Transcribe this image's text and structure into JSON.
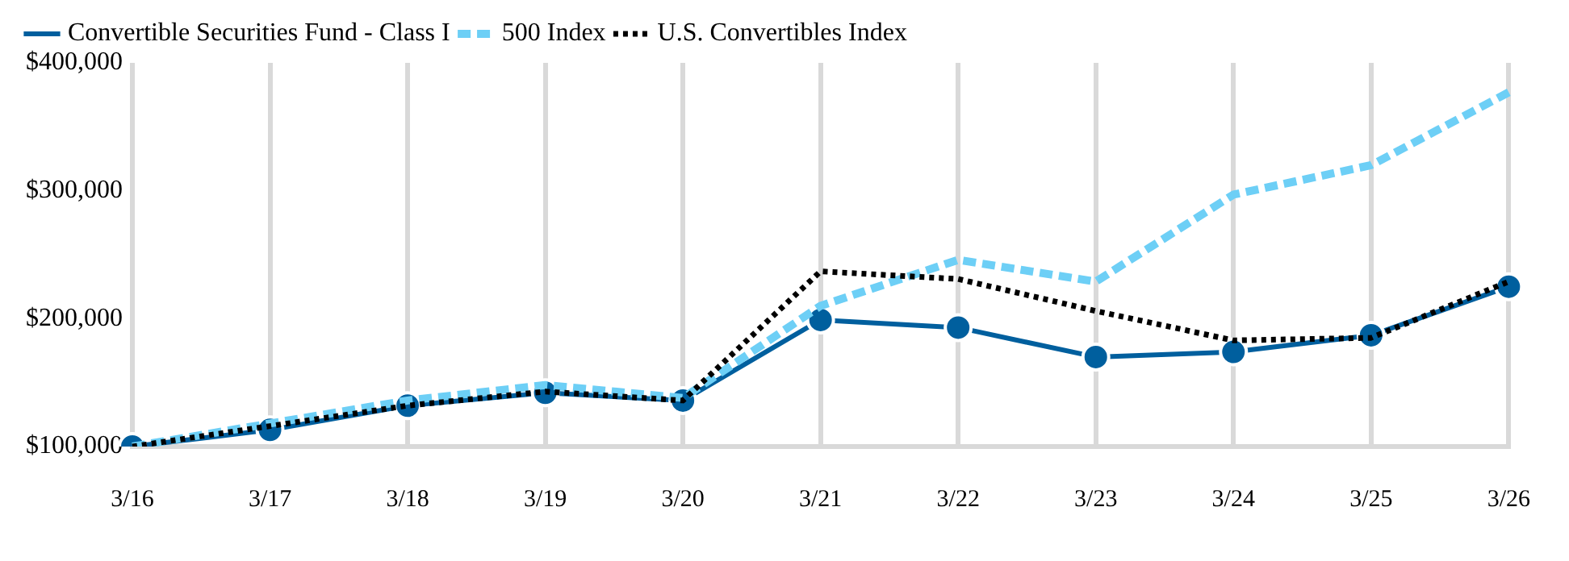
{
  "chart_data": {
    "type": "line",
    "categories": [
      "3/16",
      "3/17",
      "3/18",
      "3/19",
      "3/20",
      "3/21",
      "3/22",
      "3/23",
      "3/24",
      "3/25",
      "3/26"
    ],
    "series": [
      {
        "name": "Convertible Securities Fund - Class I",
        "color": "#005f9e",
        "marker": "circle",
        "line_style": "solid",
        "values": [
          100000,
          113000,
          132000,
          142000,
          136000,
          199000,
          193000,
          170000,
          174000,
          187000,
          225000
        ]
      },
      {
        "name": "500 Index",
        "color": "#6dcff6",
        "marker": "none",
        "line_style": "dashed",
        "values": [
          100000,
          118000,
          136000,
          148000,
          138000,
          210000,
          246000,
          229000,
          297000,
          320000,
          377000
        ]
      },
      {
        "name": "U.S. Convertibles Index",
        "color": "#000000",
        "marker": "none",
        "line_style": "dotted",
        "values": [
          100000,
          116000,
          132000,
          143000,
          136000,
          237000,
          231000,
          206000,
          183000,
          185000,
          229000
        ]
      }
    ],
    "ylim": [
      100000,
      400000
    ],
    "yticks": [
      {
        "value": 100000,
        "label": "$100,000"
      },
      {
        "value": 200000,
        "label": "$200,000"
      },
      {
        "value": 300000,
        "label": "$300,000"
      },
      {
        "value": 400000,
        "label": "$400,000"
      }
    ],
    "grid": "x",
    "legend": "top left"
  }
}
